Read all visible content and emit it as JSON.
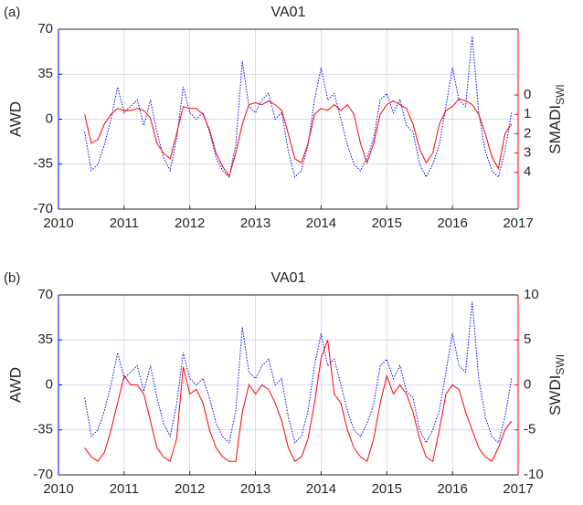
{
  "chart_data": [
    {
      "type": "line",
      "panel_label": "(a)",
      "title": "VA01",
      "y_label": "AWD",
      "y2_label": "SMADI",
      "y2_label_subscript": "SWI",
      "xlim": [
        2010,
        2017
      ],
      "xticks": [
        2010,
        2011,
        2012,
        2013,
        2014,
        2015,
        2016,
        2017
      ],
      "ylim": [
        -70,
        70
      ],
      "yticks": [
        -70,
        -35,
        0,
        35,
        70
      ],
      "y2lim": [
        5.9,
        -3.4
      ],
      "y2ticks": [
        0,
        1,
        2,
        3,
        4
      ],
      "y2color": "#ff0000",
      "ycolor": "#0000ff",
      "grid": true,
      "x": [
        2010.4,
        2010.5,
        2010.6,
        2010.7,
        2010.8,
        2010.9,
        2011.0,
        2011.1,
        2011.2,
        2011.3,
        2011.4,
        2011.5,
        2011.6,
        2011.7,
        2011.8,
        2011.9,
        2012.0,
        2012.1,
        2012.2,
        2012.3,
        2012.4,
        2012.5,
        2012.6,
        2012.7,
        2012.8,
        2012.9,
        2013.0,
        2013.1,
        2013.2,
        2013.3,
        2013.4,
        2013.5,
        2013.6,
        2013.7,
        2013.8,
        2013.9,
        2014.0,
        2014.1,
        2014.2,
        2014.3,
        2014.4,
        2014.5,
        2014.6,
        2014.7,
        2014.8,
        2014.9,
        2015.0,
        2015.1,
        2015.2,
        2015.3,
        2015.4,
        2015.5,
        2015.6,
        2015.7,
        2015.8,
        2015.9,
        2016.0,
        2016.1,
        2016.2,
        2016.3,
        2016.4,
        2016.5,
        2016.6,
        2016.7,
        2016.8,
        2016.9
      ],
      "series": [
        {
          "color": "#0000ff",
          "dotted": true,
          "values": [
            -10,
            -40,
            -35,
            -20,
            0,
            25,
            5,
            10,
            15,
            -5,
            15,
            -10,
            -30,
            -40,
            -15,
            25,
            5,
            0,
            5,
            -10,
            -30,
            -40,
            -45,
            -20,
            45,
            10,
            5,
            15,
            20,
            0,
            5,
            -25,
            -45,
            -40,
            -20,
            15,
            40,
            15,
            20,
            0,
            -20,
            -35,
            -40,
            -30,
            -15,
            15,
            20,
            5,
            15,
            -5,
            -10,
            -35,
            -45,
            -35,
            -20,
            10,
            40,
            15,
            10,
            65,
            5,
            -25,
            -40,
            -45,
            -25,
            5
          ]
        },
        {
          "color": "#ff0000",
          "axis": "y2",
          "values": [
            1,
            2.5,
            2.3,
            1.5,
            1,
            0.7,
            0.8,
            0.8,
            0.7,
            0.8,
            1.2,
            2.5,
            3,
            3.3,
            2,
            0.6,
            0.7,
            0.7,
            1,
            1.8,
            3,
            3.7,
            4.2,
            3,
            1.5,
            0.5,
            0.4,
            0.5,
            0.3,
            0.5,
            0.8,
            2,
            3.3,
            3.5,
            2.5,
            1,
            0.7,
            0.8,
            0.5,
            0.8,
            0.5,
            1,
            2.5,
            3.5,
            2.5,
            1,
            0.5,
            0.3,
            0.5,
            0.7,
            1.5,
            2.8,
            3.5,
            3,
            1.5,
            0.8,
            0.6,
            0.2,
            0.3,
            0.5,
            1,
            2,
            3.2,
            3.8,
            2,
            1.5
          ]
        }
      ]
    },
    {
      "type": "line",
      "panel_label": "(b)",
      "title": "VA01",
      "y_label": "AWD",
      "y2_label": "SWDI",
      "y2_label_subscript": "SWI",
      "xlim": [
        2010,
        2017
      ],
      "xticks": [
        2010,
        2011,
        2012,
        2013,
        2014,
        2015,
        2016,
        2017
      ],
      "ylim": [
        -70,
        70
      ],
      "yticks": [
        -70,
        -35,
        0,
        35,
        70
      ],
      "y2lim": [
        -10,
        10
      ],
      "y2ticks": [
        -10,
        -5,
        0,
        5,
        10
      ],
      "y2color": "#ff0000",
      "ycolor": "#0000ff",
      "grid": true,
      "x": [
        2010.4,
        2010.5,
        2010.6,
        2010.7,
        2010.8,
        2010.9,
        2011.0,
        2011.1,
        2011.2,
        2011.3,
        2011.4,
        2011.5,
        2011.6,
        2011.7,
        2011.8,
        2011.9,
        2012.0,
        2012.1,
        2012.2,
        2012.3,
        2012.4,
        2012.5,
        2012.6,
        2012.7,
        2012.8,
        2012.9,
        2013.0,
        2013.1,
        2013.2,
        2013.3,
        2013.4,
        2013.5,
        2013.6,
        2013.7,
        2013.8,
        2013.9,
        2014.0,
        2014.1,
        2014.2,
        2014.3,
        2014.4,
        2014.5,
        2014.6,
        2014.7,
        2014.8,
        2014.9,
        2015.0,
        2015.1,
        2015.2,
        2015.3,
        2015.4,
        2015.5,
        2015.6,
        2015.7,
        2015.8,
        2015.9,
        2016.0,
        2016.1,
        2016.2,
        2016.3,
        2016.4,
        2016.5,
        2016.6,
        2016.7,
        2016.8,
        2016.9
      ],
      "series": [
        {
          "color": "#0000ff",
          "dotted": true,
          "values": [
            -10,
            -40,
            -35,
            -20,
            0,
            25,
            5,
            10,
            15,
            -5,
            15,
            -10,
            -30,
            -40,
            -15,
            25,
            5,
            0,
            5,
            -10,
            -30,
            -40,
            -45,
            -20,
            45,
            10,
            5,
            15,
            20,
            0,
            5,
            -25,
            -45,
            -40,
            -20,
            15,
            40,
            15,
            20,
            0,
            -20,
            -35,
            -40,
            -30,
            -15,
            15,
            20,
            5,
            15,
            -5,
            -10,
            -35,
            -45,
            -35,
            -20,
            10,
            40,
            15,
            10,
            65,
            5,
            -25,
            -40,
            -45,
            -25,
            5
          ]
        },
        {
          "color": "#ff0000",
          "axis": "y2",
          "values": [
            -7,
            -8,
            -8.5,
            -7.5,
            -5,
            -2,
            1,
            0,
            0,
            -1,
            -4,
            -7,
            -8,
            -8.5,
            -6,
            2,
            -1,
            -0.5,
            -2,
            -5,
            -7,
            -8,
            -8.5,
            -8.5,
            -3,
            0,
            -1,
            0,
            -0.5,
            -2,
            -4,
            -7,
            -8.5,
            -8,
            -6,
            -2,
            3,
            5,
            -1,
            -2,
            -5,
            -7,
            -8,
            -8.5,
            -6,
            -2,
            1,
            -1,
            0,
            -1,
            -3,
            -6,
            -8,
            -8.5,
            -5,
            -1,
            0,
            -0.5,
            -3,
            -5,
            -7,
            -8,
            -8.5,
            -7,
            -5,
            -4
          ]
        }
      ]
    }
  ]
}
